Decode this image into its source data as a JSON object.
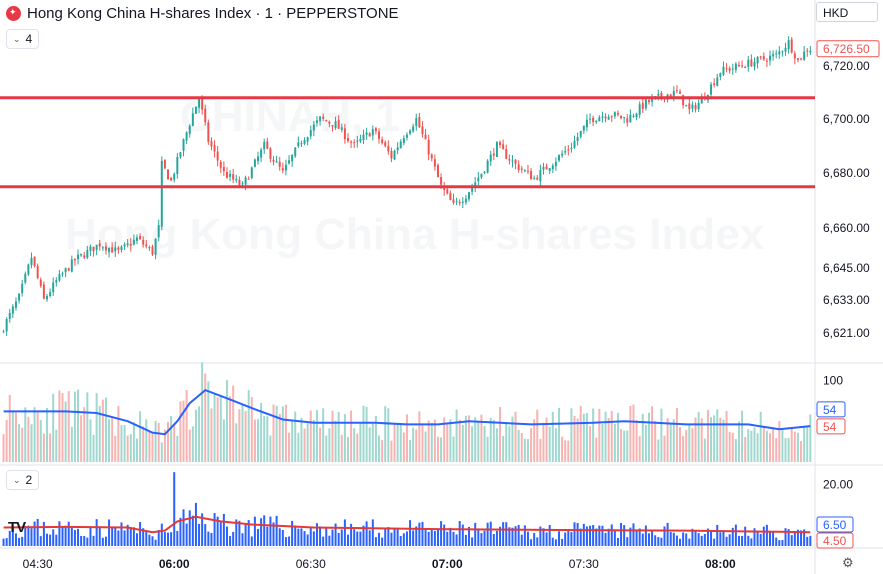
{
  "header": {
    "title": "Hong Kong China H-shares Index · 1 · PEPPERSTONE",
    "currency": "HKD"
  },
  "watermark": {
    "symbol": "CHINAH, 1",
    "name": "Hong Kong China H-shares Index"
  },
  "panes": {
    "price_collapse_label": "4",
    "indicator_collapse_label": "2"
  },
  "colors": {
    "up": "#26a69a",
    "down": "#ef5350",
    "level_line": "#e63946",
    "volume_ma": "#2962ff",
    "bars_blue": "#2962ff",
    "bars_red_line": "#e53935"
  },
  "chart_data": [
    {
      "type": "candlestick",
      "pane": "price",
      "x_ticks": [
        "04:30",
        "06:00",
        "06:30",
        "07:00",
        "07:30",
        "08:00"
      ],
      "x_ticks_bold": [
        "06:00",
        "07:00",
        "08:00"
      ],
      "y_ticks": [
        6720.0,
        6700.0,
        6680.0,
        6660.0,
        6645.0,
        6633.0,
        6621.0
      ],
      "y_tick_labels": [
        "6,720.00",
        "6,700.00",
        "6,680.00",
        "6,660.00",
        "6,645.00",
        "6,633.00",
        "6,621.00"
      ],
      "last_price_label": "6,726.50",
      "last_price": 6726.5,
      "horizontal_levels": [
        6708,
        6675
      ],
      "close_path": [
        {
          "t": 0,
          "v": 6621
        },
        {
          "t": 6,
          "v": 6634
        },
        {
          "t": 10,
          "v": 6649
        },
        {
          "t": 14,
          "v": 6633
        },
        {
          "t": 18,
          "v": 6640
        },
        {
          "t": 24,
          "v": 6648
        },
        {
          "t": 32,
          "v": 6654
        },
        {
          "t": 38,
          "v": 6651
        },
        {
          "t": 44,
          "v": 6656
        },
        {
          "t": 49,
          "v": 6651
        },
        {
          "t": 51,
          "v": 6660
        },
        {
          "t": 52,
          "v": 6683
        },
        {
          "t": 55,
          "v": 6677
        },
        {
          "t": 58,
          "v": 6688
        },
        {
          "t": 62,
          "v": 6702
        },
        {
          "t": 64,
          "v": 6708
        },
        {
          "t": 67,
          "v": 6692
        },
        {
          "t": 72,
          "v": 6680
        },
        {
          "t": 78,
          "v": 6675
        },
        {
          "t": 85,
          "v": 6690
        },
        {
          "t": 91,
          "v": 6680
        },
        {
          "t": 97,
          "v": 6692
        },
        {
          "t": 103,
          "v": 6700
        },
        {
          "t": 108,
          "v": 6698
        },
        {
          "t": 114,
          "v": 6690
        },
        {
          "t": 120,
          "v": 6696
        },
        {
          "t": 126,
          "v": 6686
        },
        {
          "t": 130,
          "v": 6694
        },
        {
          "t": 134,
          "v": 6700
        },
        {
          "t": 138,
          "v": 6688
        },
        {
          "t": 142,
          "v": 6675
        },
        {
          "t": 146,
          "v": 6668
        },
        {
          "t": 150,
          "v": 6672
        },
        {
          "t": 155,
          "v": 6680
        },
        {
          "t": 160,
          "v": 6690
        },
        {
          "t": 166,
          "v": 6683
        },
        {
          "t": 172,
          "v": 6678
        },
        {
          "t": 178,
          "v": 6684
        },
        {
          "t": 184,
          "v": 6690
        },
        {
          "t": 190,
          "v": 6700
        },
        {
          "t": 196,
          "v": 6702
        },
        {
          "t": 202,
          "v": 6700
        },
        {
          "t": 208,
          "v": 6706
        },
        {
          "t": 214,
          "v": 6709
        },
        {
          "t": 218,
          "v": 6710
        },
        {
          "t": 222,
          "v": 6703
        },
        {
          "t": 226,
          "v": 6707
        },
        {
          "t": 232,
          "v": 6718
        },
        {
          "t": 238,
          "v": 6720
        },
        {
          "t": 244,
          "v": 6722
        },
        {
          "t": 250,
          "v": 6724
        },
        {
          "t": 254,
          "v": 6729
        },
        {
          "t": 257,
          "v": 6722
        },
        {
          "t": 260,
          "v": 6726.5
        }
      ]
    },
    {
      "type": "bar",
      "pane": "volume",
      "y_tick_labels": [
        "100"
      ],
      "value_labels": [
        "54",
        "54"
      ],
      "ma_path": [
        {
          "t": 0,
          "v": 62
        },
        {
          "t": 10,
          "v": 62
        },
        {
          "t": 20,
          "v": 62
        },
        {
          "t": 30,
          "v": 60
        },
        {
          "t": 40,
          "v": 50
        },
        {
          "t": 48,
          "v": 36
        },
        {
          "t": 52,
          "v": 34
        },
        {
          "t": 56,
          "v": 50
        },
        {
          "t": 60,
          "v": 72
        },
        {
          "t": 65,
          "v": 88
        },
        {
          "t": 72,
          "v": 78
        },
        {
          "t": 80,
          "v": 66
        },
        {
          "t": 90,
          "v": 52
        },
        {
          "t": 100,
          "v": 48
        },
        {
          "t": 110,
          "v": 48
        },
        {
          "t": 120,
          "v": 48
        },
        {
          "t": 130,
          "v": 46
        },
        {
          "t": 140,
          "v": 46
        },
        {
          "t": 150,
          "v": 50
        },
        {
          "t": 160,
          "v": 48
        },
        {
          "t": 170,
          "v": 46
        },
        {
          "t": 180,
          "v": 47
        },
        {
          "t": 190,
          "v": 48
        },
        {
          "t": 200,
          "v": 50
        },
        {
          "t": 210,
          "v": 48
        },
        {
          "t": 220,
          "v": 46
        },
        {
          "t": 230,
          "v": 46
        },
        {
          "t": 240,
          "v": 46
        },
        {
          "t": 250,
          "v": 40
        },
        {
          "t": 260,
          "v": 44
        }
      ]
    },
    {
      "type": "bar",
      "pane": "indicator",
      "y_tick_labels": [
        "20.00"
      ],
      "value_labels": [
        "6.50",
        "4.50"
      ],
      "line_path": [
        {
          "t": 0,
          "v": 6
        },
        {
          "t": 20,
          "v": 6.2
        },
        {
          "t": 40,
          "v": 6
        },
        {
          "t": 48,
          "v": 4.5
        },
        {
          "t": 52,
          "v": 5
        },
        {
          "t": 56,
          "v": 8
        },
        {
          "t": 62,
          "v": 9.5
        },
        {
          "t": 70,
          "v": 8
        },
        {
          "t": 80,
          "v": 7
        },
        {
          "t": 100,
          "v": 6
        },
        {
          "t": 140,
          "v": 5.5
        },
        {
          "t": 180,
          "v": 5.2
        },
        {
          "t": 220,
          "v": 5
        },
        {
          "t": 250,
          "v": 4.6
        },
        {
          "t": 260,
          "v": 4.5
        }
      ]
    }
  ]
}
